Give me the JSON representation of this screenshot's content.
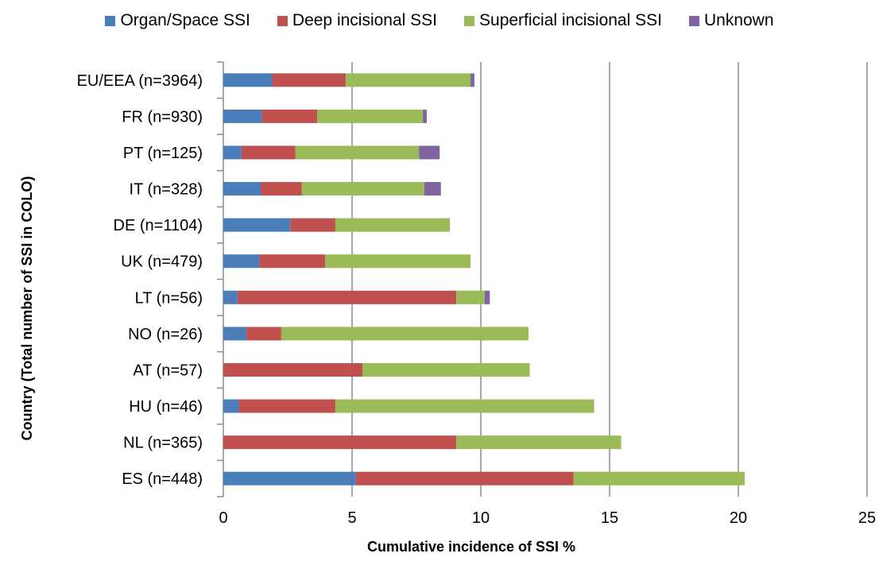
{
  "chart_data": {
    "type": "bar",
    "orientation": "horizontal",
    "stacked": true,
    "title": "",
    "xlabel": "Cumulative incidence of SSI %",
    "ylabel": "Country  (Total number of SSI in COLO)",
    "xlim": [
      0,
      25
    ],
    "xticks": [
      "0",
      "5",
      "10",
      "15",
      "20",
      "25"
    ],
    "grid": "vertical",
    "legend_position": "top",
    "categories": [
      "EU/EEA (n=3964)",
      "FR (n=930)",
      "PT (n=125)",
      "IT (n=328)",
      "DE (n=1104)",
      "UK (n=479)",
      "LT (n=56)",
      "NO (n=26)",
      "AT (n=57)",
      "HU (n=46)",
      "NL (n=365)",
      "ES (n=448)"
    ],
    "series": [
      {
        "name": "Organ/Space SSI",
        "color": "#4a7ebb",
        "values": [
          1.9,
          1.5,
          0.7,
          1.45,
          2.6,
          1.4,
          0.55,
          0.9,
          0.0,
          0.6,
          0.0,
          5.15
        ]
      },
      {
        "name": "Deep incisional SSI",
        "color": "#c0504d",
        "values": [
          2.85,
          2.15,
          2.1,
          1.6,
          1.75,
          2.55,
          8.5,
          1.35,
          5.4,
          3.75,
          9.05,
          8.45
        ]
      },
      {
        "name": "Superficial incisional SSI",
        "color": "#9bbb59",
        "values": [
          4.85,
          4.1,
          4.8,
          4.75,
          4.45,
          5.65,
          1.1,
          9.6,
          6.5,
          10.05,
          6.4,
          6.65
        ]
      },
      {
        "name": "Unknown",
        "color": "#8064a2",
        "values": [
          0.15,
          0.15,
          0.8,
          0.65,
          0.0,
          0.0,
          0.2,
          0.0,
          0.0,
          0.0,
          0.0,
          0.0
        ]
      }
    ]
  }
}
